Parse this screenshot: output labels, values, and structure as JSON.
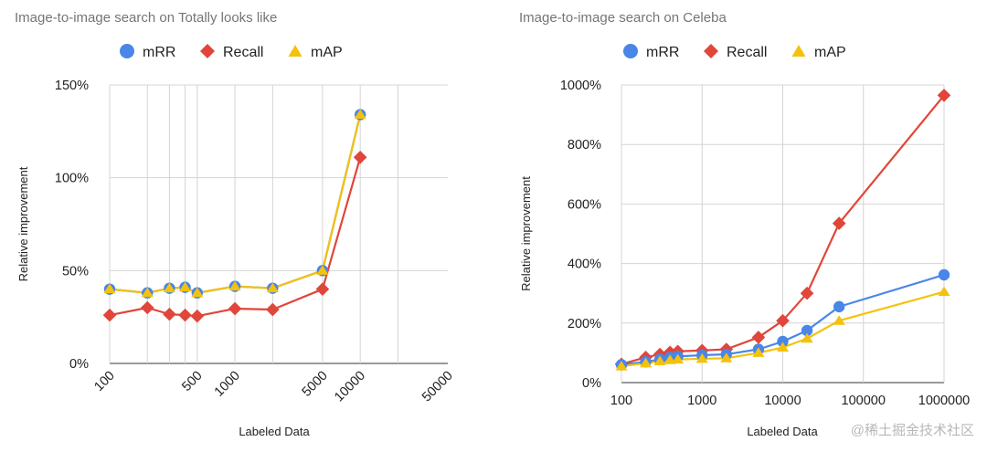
{
  "watermark": "@稀土掘金技术社区",
  "chart_data": [
    {
      "type": "line",
      "title": "Image-to-image search on Totally looks like",
      "xlabel": "Labeled Data",
      "ylabel": "Relative improvement",
      "x_scale": "log",
      "xlim": [
        100,
        50000
      ],
      "x_ticks": [
        100,
        500,
        1000,
        5000,
        10000,
        50000
      ],
      "x_tick_labels": [
        "100",
        "500",
        "1000",
        "5000",
        "10000",
        "50000"
      ],
      "x_tick_rotation": -45,
      "x_gridlines": [
        100,
        200,
        300,
        400,
        500,
        1000,
        2000,
        5000,
        10000,
        20000
      ],
      "ylim": [
        0,
        150
      ],
      "y_ticks": [
        0,
        50,
        100,
        150
      ],
      "y_tick_labels": [
        "0%",
        "50%",
        "100%",
        "150%"
      ],
      "grid": true,
      "legend_position": "top",
      "x": [
        100,
        200,
        300,
        400,
        500,
        1000,
        2000,
        5000,
        10000
      ],
      "series": [
        {
          "name": "mRR",
          "color": "#4a86e8",
          "marker": "circle",
          "values": [
            40,
            38,
            40.5,
            41,
            38,
            41.5,
            40.5,
            50,
            134
          ]
        },
        {
          "name": "Recall",
          "color": "#e0463a",
          "marker": "diamond",
          "values": [
            26,
            30,
            26.5,
            26,
            25.5,
            29.5,
            29,
            40,
            111
          ]
        },
        {
          "name": "mAP",
          "color": "#f4c20d",
          "marker": "triangle",
          "values": [
            40,
            38,
            40.5,
            41,
            38,
            41.5,
            40.5,
            50,
            134
          ]
        }
      ]
    },
    {
      "type": "line",
      "title": "Image-to-image search on Celeba",
      "xlabel": "Labeled Data",
      "ylabel": "Relative improvement",
      "x_scale": "log",
      "xlim": [
        100,
        1000000
      ],
      "x_ticks": [
        100,
        1000,
        10000,
        100000,
        1000000
      ],
      "x_tick_labels": [
        "100",
        "1000",
        "10000",
        "100000",
        "1000000"
      ],
      "x_tick_rotation": 0,
      "x_gridlines": [
        100,
        1000,
        10000,
        100000,
        1000000
      ],
      "ylim": [
        0,
        1000
      ],
      "y_ticks": [
        0,
        200,
        400,
        600,
        800,
        1000
      ],
      "y_tick_labels": [
        "0%",
        "200%",
        "400%",
        "600%",
        "800%",
        "1000%"
      ],
      "grid": true,
      "legend_position": "top",
      "x": [
        100,
        200,
        300,
        400,
        500,
        1000,
        2000,
        5000,
        10000,
        20000,
        50000,
        1000000
      ],
      "series": [
        {
          "name": "mRR",
          "color": "#4a86e8",
          "marker": "circle",
          "values": [
            60,
            70,
            78,
            85,
            88,
            92,
            95,
            112,
            138,
            175,
            255,
            362
          ]
        },
        {
          "name": "Recall",
          "color": "#e0463a",
          "marker": "diamond",
          "values": [
            62,
            85,
            95,
            102,
            105,
            108,
            112,
            152,
            208,
            300,
            535,
            965
          ]
        },
        {
          "name": "mAP",
          "color": "#f4c20d",
          "marker": "triangle",
          "values": [
            55,
            65,
            72,
            76,
            78,
            80,
            82,
            100,
            118,
            148,
            208,
            305
          ]
        }
      ]
    }
  ]
}
